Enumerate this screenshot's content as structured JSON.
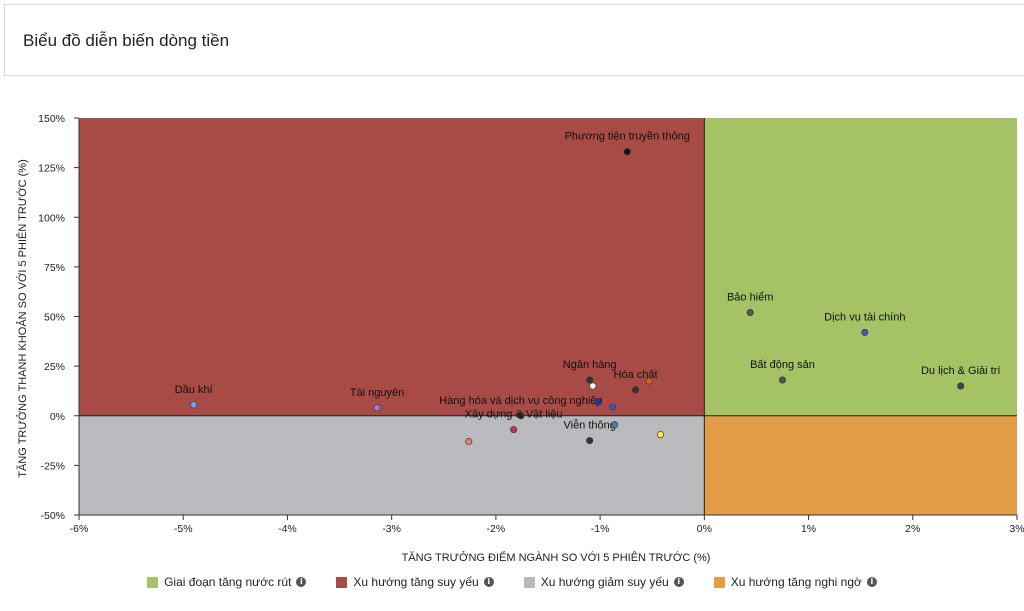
{
  "header": {
    "title": "Biểu đồ diễn biến dòng tiền"
  },
  "chart_data": {
    "type": "scatter",
    "xlabel": "TĂNG TRƯỞNG ĐIỂM NGÀNH SO VỚI 5 PHIÊN TRƯỚC (%)",
    "ylabel": "TĂNG TRƯỞNG THANH KHOẢN SO VỚI 5 PHIÊN TRƯỚC (%)",
    "xlim": [
      -6,
      3
    ],
    "ylim": [
      -50,
      150
    ],
    "x_ticks": [
      -6,
      -5,
      -4,
      -3,
      -2,
      -1,
      0,
      1,
      2,
      3
    ],
    "y_ticks": [
      -50,
      -25,
      0,
      25,
      50,
      75,
      100,
      125,
      150
    ],
    "x_tick_labels": [
      "-6%",
      "-5%",
      "-4%",
      "-3%",
      "-2%",
      "-1%",
      "0%",
      "1%",
      "2%",
      "3%"
    ],
    "y_tick_labels": [
      "-50%",
      "-25%",
      "0%",
      "25%",
      "50%",
      "75%",
      "100%",
      "125%",
      "150%"
    ],
    "quadrants": [
      {
        "name": "Giai đoạn tăng nước rút",
        "color": "#a5c264",
        "x": [
          0,
          3
        ],
        "y": [
          0,
          150
        ]
      },
      {
        "name": "Xu hướng tăng suy yếu",
        "color": "#a84a46",
        "x": [
          -6,
          0
        ],
        "y": [
          0,
          150
        ]
      },
      {
        "name": "Xu hướng giảm suy yếu",
        "color": "#b9babd",
        "x": [
          -6,
          0
        ],
        "y": [
          -50,
          0
        ]
      },
      {
        "name": "Xu hướng tăng nghi ngờ",
        "color": "#e39c48",
        "x": [
          0,
          3
        ],
        "y": [
          -50,
          0
        ]
      }
    ],
    "points": [
      {
        "label": "Phương tiện truyền thông",
        "x": -0.74,
        "y": 133,
        "color": "#111111"
      },
      {
        "label": "Bảo hiểm",
        "x": 0.44,
        "y": 52,
        "color": "#555555"
      },
      {
        "label": "Dịch vụ tài chính",
        "x": 1.54,
        "y": 42,
        "color": "#4a55c0"
      },
      {
        "label": "Bất động sản",
        "x": 0.75,
        "y": 18,
        "color": "#555555"
      },
      {
        "label": "Du lịch & Giải trí",
        "x": 2.46,
        "y": 15,
        "color": "#444444"
      },
      {
        "label": "Ngân hàng",
        "x": -1.1,
        "y": 18,
        "color": "#333333"
      },
      {
        "label": "Hóa chất",
        "x": -0.66,
        "y": 13,
        "color": "#333333"
      },
      {
        "label": "Dầu khí",
        "x": -4.9,
        "y": 5.5,
        "color": "#6aa6e8"
      },
      {
        "label": "Tài nguyên",
        "x": -3.14,
        "y": 4,
        "color": "#a57ad8"
      },
      {
        "label": "Hàng hóa và dịch vụ công nghiệp",
        "x": -1.76,
        "y": 0,
        "color": "#333333"
      },
      {
        "label": "Xây dựng & Vật liệu",
        "x": -1.83,
        "y": -7,
        "color": "#c8325a"
      },
      {
        "label": "Viễn thông",
        "x": -1.1,
        "y": -12.5,
        "color": "#2a3a1a"
      },
      {
        "label": "",
        "x": -2.26,
        "y": -13,
        "color": "#e08070"
      },
      {
        "label": "",
        "x": -0.42,
        "y": -9.5,
        "color": "#f5ee40"
      },
      {
        "label": "",
        "x": -0.86,
        "y": -4.5,
        "color": "#4a7ac0"
      },
      {
        "label": "",
        "x": -0.88,
        "y": 4.5,
        "color": "#3355cc"
      },
      {
        "label": "",
        "x": -1.02,
        "y": 7,
        "color": "#2233aa"
      },
      {
        "label": "",
        "x": -0.53,
        "y": 17.5,
        "color": "#e05a1a"
      },
      {
        "label": "",
        "x": -1.07,
        "y": 15,
        "color": "#f5f5f5"
      }
    ],
    "legend_placement": "bottom"
  }
}
